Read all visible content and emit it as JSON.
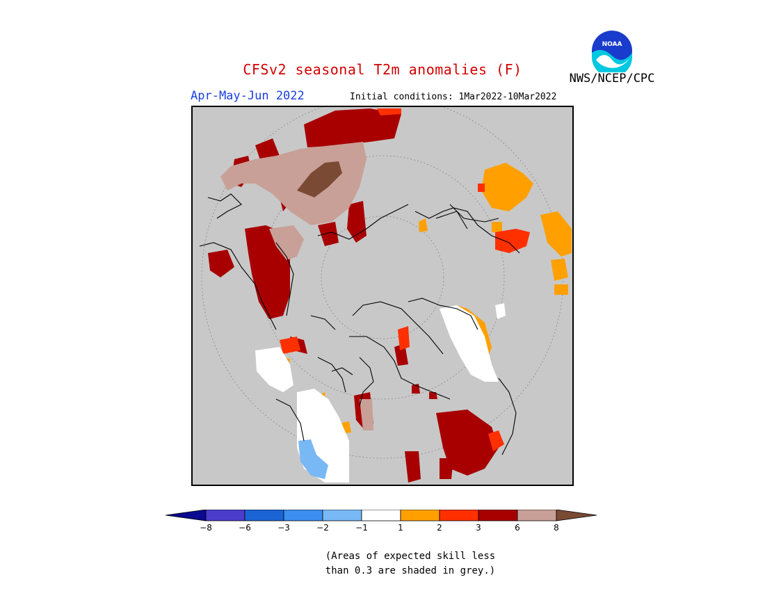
{
  "title": "CFSv2 seasonal T2m anomalies (F)",
  "agency": "NWS/NCEP/CPC",
  "logo_text": "NOAA",
  "season": "Apr-May-Jun 2022",
  "initial_conditions": "Initial conditions: 1Mar2022-10Mar2022",
  "note_line1": "(Areas of expected skill less",
  "note_line2": "than 0.3 are shaded in grey.)",
  "legend": {
    "bins": [
      {
        "color": "#0a0a90"
      },
      {
        "color": "#4b3ccc"
      },
      {
        "color": "#1a64d6"
      },
      {
        "color": "#3c8ef0"
      },
      {
        "color": "#78b8f5"
      },
      {
        "color": "#ffffff"
      },
      {
        "color": "#ffa000"
      },
      {
        "color": "#ff3000"
      },
      {
        "color": "#a80000"
      },
      {
        "color": "#c8a098"
      },
      {
        "color": "#7a4a34"
      }
    ],
    "ticks": [
      "−8",
      "−6",
      "−3",
      "−2",
      "−1",
      "1",
      "2",
      "3",
      "6",
      "8"
    ]
  },
  "colors": {
    "no_skill": "#c8c8c8",
    "warm_1_2": "#ffa000",
    "warm_2_3": "#ff3000",
    "warm_3_6": "#a80000",
    "warm_6_8": "#c8a098",
    "warm_gt8": "#7a4a34",
    "cool_1_2": "#78b8f5",
    "near_normal": "#ffffff"
  }
}
